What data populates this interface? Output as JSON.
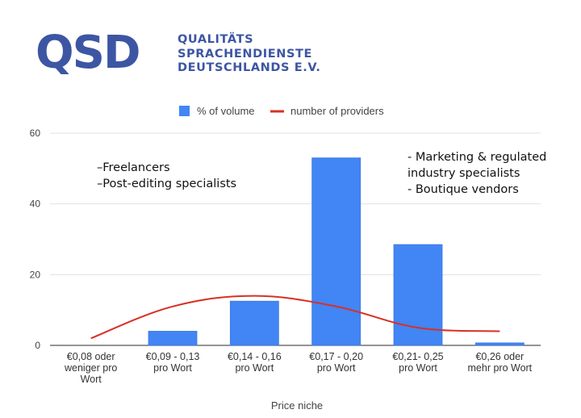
{
  "logo": {
    "mark": "QSD",
    "lines": [
      "QUALITÄTS",
      "SPRACHENDIENSTE",
      "DEUTSCHLANDS E.V."
    ]
  },
  "colors": {
    "bar": "#4285f4",
    "bar_border": "#3b78dc",
    "line": "#d93025",
    "logo": "#3d56a3",
    "grid": "#e0e0e0"
  },
  "annotations": {
    "left": [
      "–Freelancers",
      "–Post-editing specialists"
    ],
    "right": [
      "- Marketing & regulated",
      "industry specialists",
      "- Boutique vendors"
    ]
  },
  "chart_data": {
    "type": "bar",
    "categories": [
      [
        "€0,08 oder",
        "weniger pro",
        "Wort"
      ],
      [
        "€0,09 - 0,13",
        "pro Wort"
      ],
      [
        "€0,14 - 0,16",
        "pro Wort"
      ],
      [
        "€0,17 - 0,20",
        "pro Wort"
      ],
      [
        "€0,21- 0,25",
        "pro Wort"
      ],
      [
        "€0,26 oder",
        "mehr pro Wort"
      ]
    ],
    "series": [
      {
        "name": "% of volume",
        "type": "bar",
        "values": [
          0,
          4,
          12.5,
          53,
          28.5,
          0.7
        ]
      },
      {
        "name": "number of providers",
        "type": "line",
        "values": [
          2,
          11,
          14,
          11,
          5,
          4
        ]
      }
    ],
    "xlabel": "Price niche",
    "ylabel": "",
    "ylim": [
      0,
      60
    ],
    "yticks": [
      0,
      20,
      40,
      60
    ],
    "grid": true,
    "legend": "top"
  }
}
